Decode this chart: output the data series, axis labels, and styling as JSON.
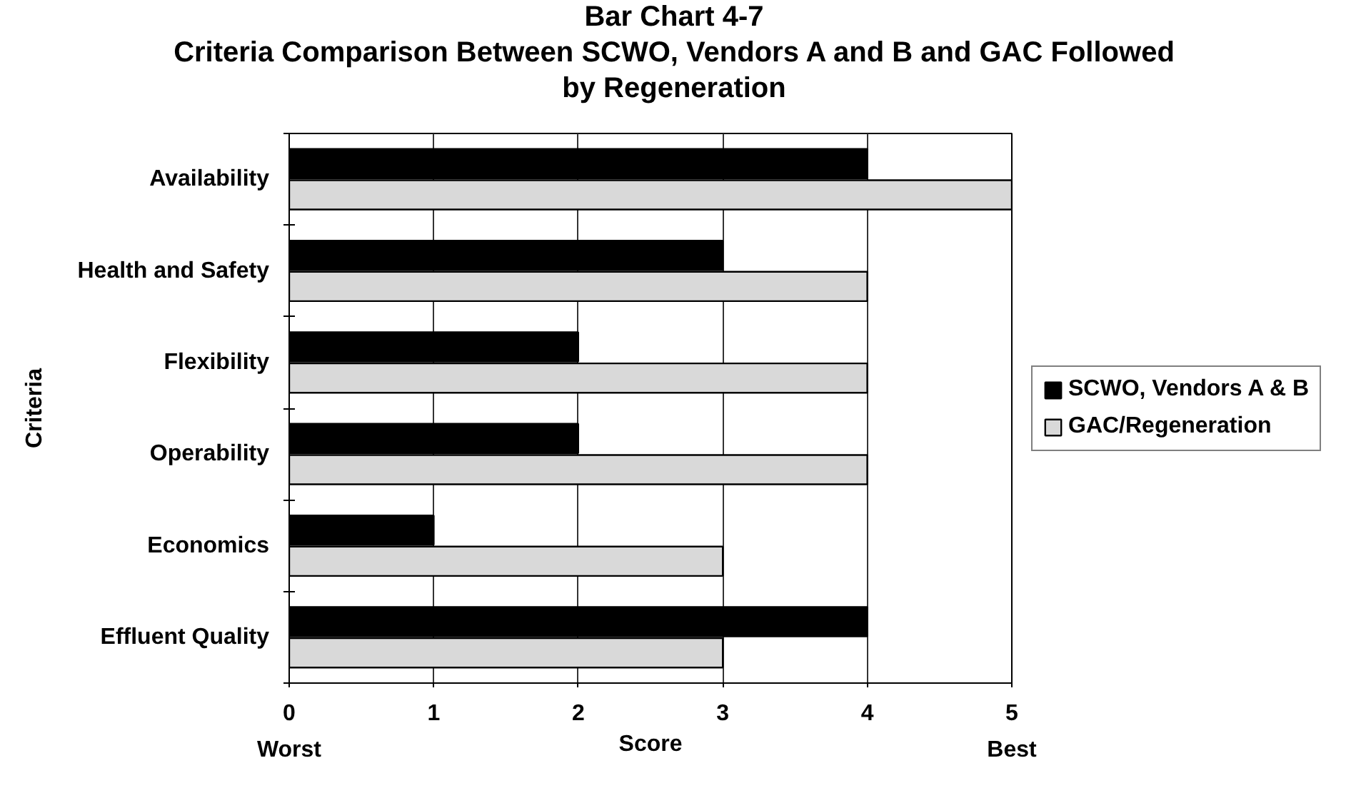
{
  "chart_data": {
    "type": "bar",
    "orientation": "horizontal",
    "title": "Bar Chart 4-7",
    "subtitle": "Criteria Comparison Between SCWO, Vendors A and B and GAC Followed by Regeneration",
    "xlabel": "Score",
    "ylabel": "Criteria",
    "categories": [
      "Availability",
      "Health and Safety",
      "Flexibility",
      "Operability",
      "Economics",
      "Effluent Quality"
    ],
    "series": [
      {
        "name": "SCWO, Vendors A & B",
        "color": "#000000",
        "values": [
          4,
          3,
          2,
          2,
          1,
          4
        ]
      },
      {
        "name": "GAC/Regeneration",
        "color": "#d9d9d9",
        "values": [
          5,
          4,
          4,
          4,
          3,
          3
        ]
      }
    ],
    "xlim": [
      0,
      5
    ],
    "xticks": [
      {
        "value": 0,
        "label": "0\nWorst"
      },
      1,
      2,
      3,
      4,
      {
        "value": 5,
        "label": "5\nBest"
      }
    ],
    "grid": "x",
    "legend": "right"
  }
}
